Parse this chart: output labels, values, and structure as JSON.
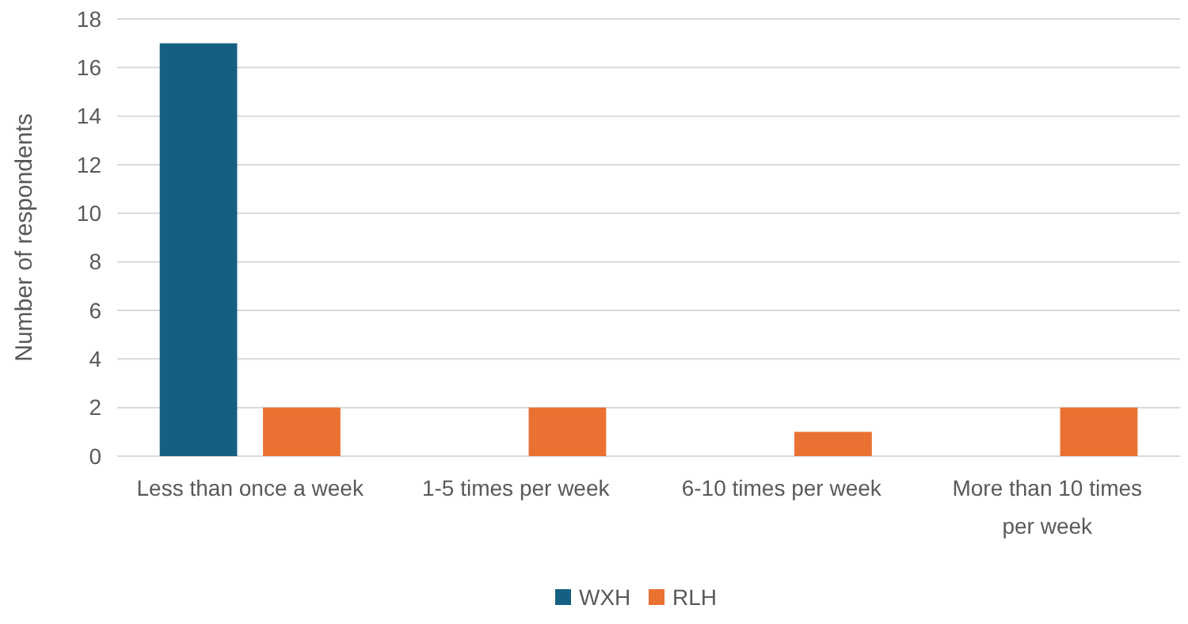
{
  "chart_data": {
    "type": "bar",
    "ylabel": "Number of respondents",
    "categories": [
      "Less than once a week",
      "1-5 times per week",
      "6-10 times per week",
      "More than 10 times per week"
    ],
    "series": [
      {
        "name": "WXH",
        "color": "#156082",
        "values": [
          17,
          0,
          0,
          0
        ]
      },
      {
        "name": "RLH",
        "color": "#e97132",
        "values": [
          2,
          2,
          1,
          2
        ]
      }
    ],
    "ylim": [
      0,
      18
    ],
    "yticks": [
      0,
      2,
      4,
      6,
      8,
      10,
      12,
      14,
      16,
      18
    ],
    "grid": "y",
    "legend": "bottom"
  }
}
